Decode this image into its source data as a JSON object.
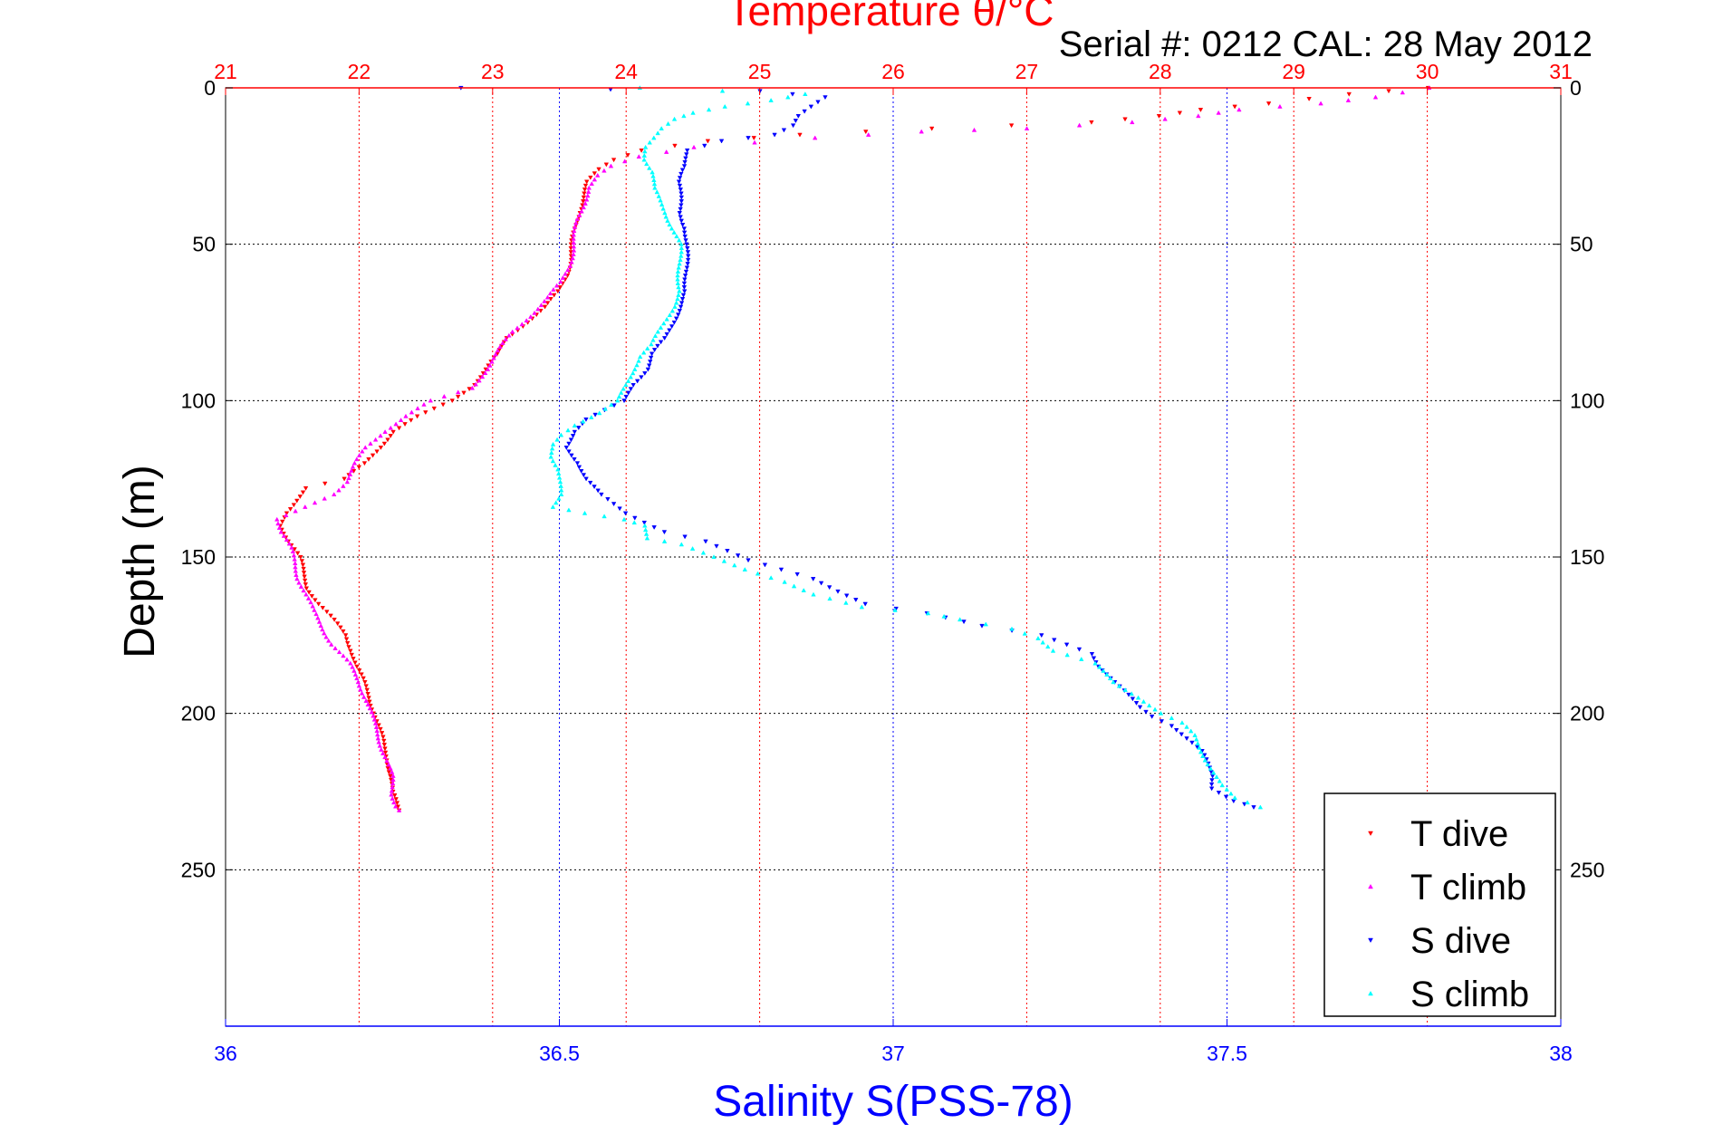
{
  "header": {
    "top_title": "Temperature θ/°C",
    "serial_text": "Serial #: 0212  CAL: 28 May 2012"
  },
  "chart_data": {
    "type": "scatter",
    "xlabel": "Salinity S(PSS-78)",
    "x2label": "Temperature θ/°C",
    "ylabel": "Depth (m)",
    "xlim": [
      36,
      38
    ],
    "x2lim": [
      21,
      31
    ],
    "ylim": [
      300,
      0
    ],
    "y_reversed": true,
    "x_ticks": [
      "36",
      "36.5",
      "37",
      "37.5",
      "38"
    ],
    "x2_ticks": [
      "21",
      "22",
      "23",
      "24",
      "25",
      "26",
      "27",
      "28",
      "29",
      "30",
      "31"
    ],
    "y_ticks": [
      "0",
      "50",
      "100",
      "150",
      "200",
      "250"
    ],
    "grid": true,
    "legend_position": "bottom-right",
    "colors": {
      "temperature_axis": "#ff0000",
      "salinity_axis": "#0000ff",
      "t_dive": "#ff0000",
      "t_climb": "#ff00ff",
      "s_dive": "#0000ff",
      "s_climb": "#00ffff"
    },
    "series": [
      {
        "name": "T dive",
        "axis": "temperature",
        "marker": "triangle-down",
        "color": "#ff0000",
        "profile": [
          [
            30.0,
            0
          ],
          [
            29.4,
            2
          ],
          [
            28.8,
            5
          ],
          [
            28.3,
            7
          ],
          [
            28.0,
            9
          ],
          [
            27.5,
            11
          ],
          [
            26.3,
            13
          ],
          [
            25.3,
            15
          ],
          [
            24.6,
            17
          ],
          [
            24.1,
            20
          ],
          [
            23.9,
            23
          ],
          [
            23.8,
            26
          ],
          [
            23.72,
            30
          ],
          [
            23.68,
            35
          ],
          [
            23.64,
            40
          ],
          [
            23.62,
            45
          ],
          [
            23.6,
            50
          ],
          [
            23.58,
            55
          ],
          [
            23.55,
            60
          ],
          [
            23.5,
            65
          ],
          [
            23.4,
            70
          ],
          [
            23.25,
            75
          ],
          [
            23.1,
            80
          ],
          [
            23.05,
            85
          ],
          [
            22.95,
            90
          ],
          [
            22.85,
            95
          ],
          [
            22.7,
            100
          ],
          [
            22.45,
            105
          ],
          [
            22.25,
            110
          ],
          [
            22.15,
            115
          ],
          [
            22.05,
            120
          ],
          [
            21.9,
            125
          ],
          [
            21.6,
            128
          ],
          [
            21.52,
            132
          ],
          [
            21.45,
            136
          ],
          [
            21.42,
            140
          ],
          [
            21.48,
            145
          ],
          [
            21.55,
            150
          ],
          [
            21.58,
            155
          ],
          [
            21.62,
            160
          ],
          [
            21.7,
            165
          ],
          [
            21.8,
            170
          ],
          [
            21.9,
            175
          ],
          [
            21.95,
            180
          ],
          [
            21.98,
            185
          ],
          [
            22.03,
            190
          ],
          [
            22.08,
            195
          ],
          [
            22.12,
            200
          ],
          [
            22.15,
            205
          ],
          [
            22.18,
            210
          ],
          [
            22.22,
            215
          ],
          [
            22.24,
            220
          ],
          [
            22.24,
            225
          ],
          [
            22.3,
            231
          ]
        ]
      },
      {
        "name": "T climb",
        "axis": "temperature",
        "marker": "triangle-up",
        "color": "#ff00ff",
        "profile": [
          [
            30.0,
            0
          ],
          [
            29.6,
            3
          ],
          [
            29.2,
            5
          ],
          [
            28.6,
            7
          ],
          [
            28.3,
            9
          ],
          [
            27.8,
            11
          ],
          [
            27.0,
            13
          ],
          [
            26.2,
            14
          ],
          [
            25.4,
            16
          ],
          [
            24.5,
            19
          ],
          [
            24.1,
            22
          ],
          [
            23.9,
            25
          ],
          [
            23.8,
            28
          ],
          [
            23.72,
            32
          ],
          [
            23.68,
            37
          ],
          [
            23.64,
            42
          ],
          [
            23.62,
            47
          ],
          [
            23.6,
            52
          ],
          [
            23.57,
            57
          ],
          [
            23.52,
            62
          ],
          [
            23.42,
            67
          ],
          [
            23.3,
            72
          ],
          [
            23.15,
            78
          ],
          [
            23.05,
            84
          ],
          [
            22.95,
            90
          ],
          [
            22.85,
            96
          ],
          [
            22.55,
            100
          ],
          [
            22.35,
            105
          ],
          [
            22.18,
            110
          ],
          [
            22.05,
            115
          ],
          [
            21.98,
            120
          ],
          [
            21.9,
            126
          ],
          [
            21.8,
            130
          ],
          [
            21.6,
            134
          ],
          [
            21.4,
            138
          ],
          [
            21.42,
            142
          ],
          [
            21.48,
            147
          ],
          [
            21.52,
            152
          ],
          [
            21.55,
            157
          ],
          [
            21.6,
            162
          ],
          [
            21.65,
            167
          ],
          [
            21.72,
            172
          ],
          [
            21.8,
            178
          ],
          [
            21.92,
            184
          ],
          [
            22.0,
            190
          ],
          [
            22.06,
            196
          ],
          [
            22.1,
            202
          ],
          [
            22.15,
            208
          ],
          [
            22.2,
            214
          ],
          [
            22.24,
            220
          ],
          [
            22.25,
            226
          ],
          [
            22.3,
            231
          ]
        ]
      },
      {
        "name": "S dive",
        "axis": "salinity",
        "marker": "triangle-down",
        "color": "#0000ff",
        "profile": [
          [
            36.35,
            0
          ],
          [
            36.8,
            1
          ],
          [
            36.9,
            3
          ],
          [
            36.88,
            6
          ],
          [
            36.86,
            9
          ],
          [
            36.85,
            12
          ],
          [
            36.82,
            15
          ],
          [
            36.74,
            17
          ],
          [
            36.69,
            20
          ],
          [
            36.69,
            25
          ],
          [
            36.68,
            30
          ],
          [
            36.68,
            35
          ],
          [
            36.68,
            40
          ],
          [
            36.69,
            45
          ],
          [
            36.69,
            50
          ],
          [
            36.69,
            55
          ],
          [
            36.69,
            60
          ],
          [
            36.69,
            65
          ],
          [
            36.68,
            70
          ],
          [
            36.67,
            75
          ],
          [
            36.66,
            80
          ],
          [
            36.64,
            85
          ],
          [
            36.63,
            90
          ],
          [
            36.61,
            95
          ],
          [
            36.6,
            100
          ],
          [
            36.57,
            103
          ],
          [
            36.54,
            106
          ],
          [
            36.52,
            110
          ],
          [
            36.51,
            115
          ],
          [
            36.53,
            120
          ],
          [
            36.54,
            125
          ],
          [
            36.56,
            130
          ],
          [
            36.58,
            133
          ],
          [
            36.6,
            136
          ],
          [
            36.63,
            139
          ],
          [
            36.66,
            142
          ],
          [
            36.72,
            145
          ],
          [
            36.75,
            148
          ],
          [
            36.78,
            151
          ],
          [
            36.83,
            154
          ],
          [
            36.88,
            157
          ],
          [
            36.92,
            161
          ],
          [
            36.96,
            165
          ],
          [
            37.05,
            168
          ],
          [
            37.13,
            172
          ],
          [
            37.22,
            175
          ],
          [
            37.26,
            178
          ],
          [
            37.3,
            181
          ],
          [
            37.31,
            185
          ],
          [
            37.33,
            190
          ],
          [
            37.35,
            194
          ],
          [
            37.37,
            198
          ],
          [
            37.39,
            201
          ],
          [
            37.42,
            204
          ],
          [
            37.44,
            208
          ],
          [
            37.46,
            212
          ],
          [
            37.47,
            216
          ],
          [
            37.48,
            220
          ],
          [
            37.48,
            224
          ],
          [
            37.51,
            228
          ],
          [
            37.54,
            230
          ]
        ]
      },
      {
        "name": "S climb",
        "axis": "salinity",
        "marker": "triangle-up",
        "color": "#00ffff",
        "profile": [
          [
            36.62,
            0
          ],
          [
            36.87,
            2
          ],
          [
            36.82,
            4
          ],
          [
            36.75,
            6
          ],
          [
            36.7,
            8
          ],
          [
            36.67,
            10
          ],
          [
            36.65,
            13
          ],
          [
            36.64,
            16
          ],
          [
            36.63,
            19
          ],
          [
            36.63,
            23
          ],
          [
            36.64,
            27
          ],
          [
            36.64,
            32
          ],
          [
            36.65,
            36
          ],
          [
            36.66,
            40
          ],
          [
            36.67,
            45
          ],
          [
            36.68,
            50
          ],
          [
            36.68,
            55
          ],
          [
            36.68,
            60
          ],
          [
            36.68,
            65
          ],
          [
            36.67,
            70
          ],
          [
            36.66,
            74
          ],
          [
            36.65,
            78
          ],
          [
            36.64,
            82
          ],
          [
            36.62,
            86
          ],
          [
            36.61,
            90
          ],
          [
            36.6,
            95
          ],
          [
            36.59,
            100
          ],
          [
            36.56,
            104
          ],
          [
            36.52,
            108
          ],
          [
            36.5,
            111
          ],
          [
            36.49,
            114
          ],
          [
            36.49,
            118
          ],
          [
            36.5,
            122
          ],
          [
            36.5,
            126
          ],
          [
            36.5,
            130
          ],
          [
            36.49,
            134
          ],
          [
            36.54,
            136
          ],
          [
            36.6,
            138
          ],
          [
            36.63,
            140
          ],
          [
            36.63,
            144
          ],
          [
            36.68,
            146
          ],
          [
            36.73,
            150
          ],
          [
            36.78,
            154
          ],
          [
            36.84,
            158
          ],
          [
            36.88,
            162
          ],
          [
            36.95,
            166
          ],
          [
            37.05,
            168
          ],
          [
            37.1,
            170
          ],
          [
            37.18,
            173
          ],
          [
            37.22,
            176
          ],
          [
            37.24,
            180
          ],
          [
            37.3,
            184
          ],
          [
            37.33,
            190
          ],
          [
            37.37,
            195
          ],
          [
            37.4,
            200
          ],
          [
            37.43,
            203
          ],
          [
            37.45,
            207
          ],
          [
            37.46,
            211
          ],
          [
            37.47,
            215
          ],
          [
            37.48,
            219
          ],
          [
            37.49,
            223
          ],
          [
            37.51,
            227
          ],
          [
            37.55,
            230
          ]
        ]
      }
    ]
  }
}
